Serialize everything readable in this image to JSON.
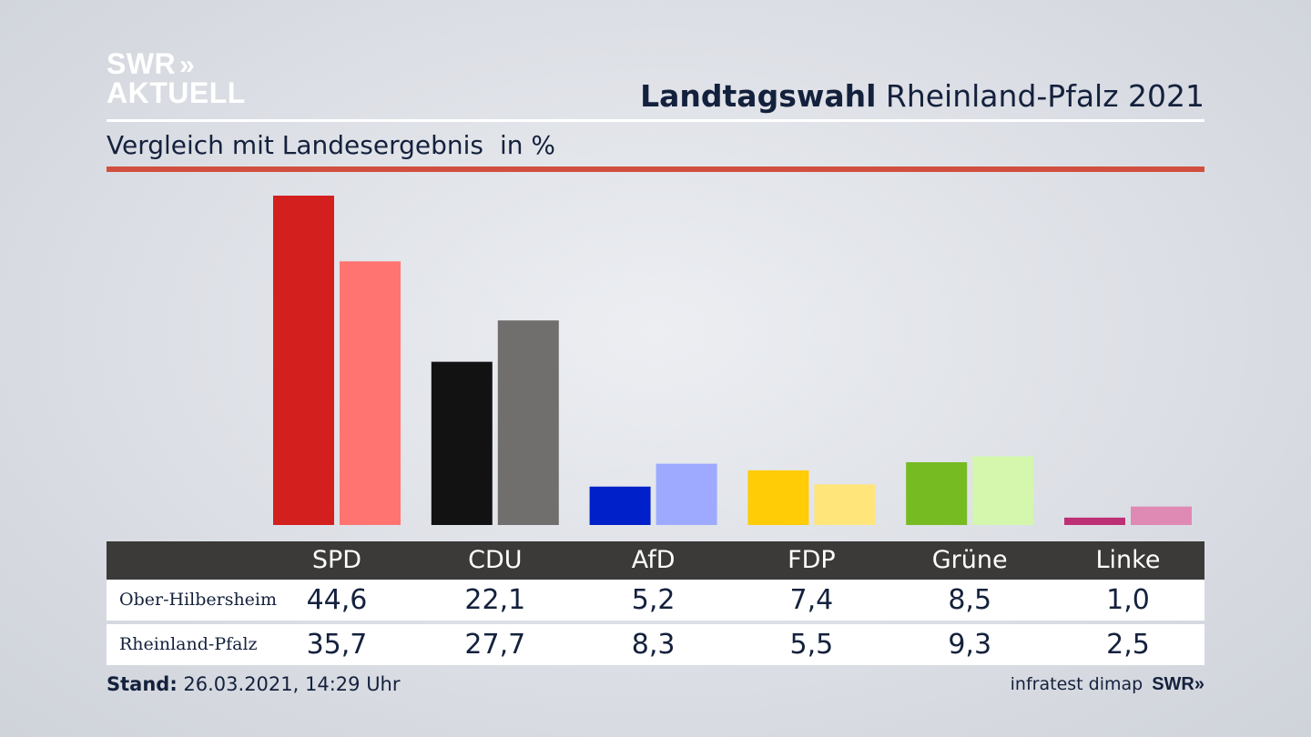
{
  "brand": {
    "logo_line1": "SWR",
    "logo_chevrons": "»",
    "logo_line2": "AKTUELL"
  },
  "header": {
    "title_bold": "Landtagswahl",
    "title_rest": "Rheinland-Pfalz 2021"
  },
  "subtitle": {
    "text": "Vergleich mit Landesergebnis",
    "unit": "in %"
  },
  "colors": {
    "accent_rule": "#d14f3e",
    "table_header_bg": "#3b3a39",
    "bar_colors": [
      [
        "#d41f1f",
        "#ff7470"
      ],
      [
        "#121212",
        "#706f6e"
      ],
      [
        "#0021c9",
        "#9daaff"
      ],
      [
        "#ffcc06",
        "#ffe57a"
      ],
      [
        "#76bb21",
        "#d4f7ad"
      ],
      [
        "#bd3075",
        "#df89b5"
      ]
    ]
  },
  "chart_data": {
    "type": "bar",
    "categories": [
      "SPD",
      "CDU",
      "AfD",
      "FDP",
      "Grüne",
      "Linke"
    ],
    "series": [
      {
        "name": "Ober-Hilbersheim",
        "values": [
          44.6,
          22.1,
          5.2,
          7.4,
          8.5,
          1.0
        ],
        "labels": [
          "44,6",
          "22,1",
          "5,2",
          "7,4",
          "8,5",
          "1,0"
        ]
      },
      {
        "name": "Rheinland-Pfalz",
        "values": [
          35.7,
          27.7,
          8.3,
          5.5,
          9.3,
          2.5
        ],
        "labels": [
          "35,7",
          "27,7",
          "8,3",
          "5,5",
          "9,3",
          "2,5"
        ]
      }
    ],
    "title": "Vergleich mit Landesergebnis",
    "ylabel": "in %",
    "ylim": [
      0,
      44.6
    ],
    "grid": false
  },
  "footer": {
    "stand_label": "Stand:",
    "stand_value": "26.03.2021, 14:29 Uhr",
    "source": "infratest dimap",
    "source_brand": "SWR»"
  }
}
